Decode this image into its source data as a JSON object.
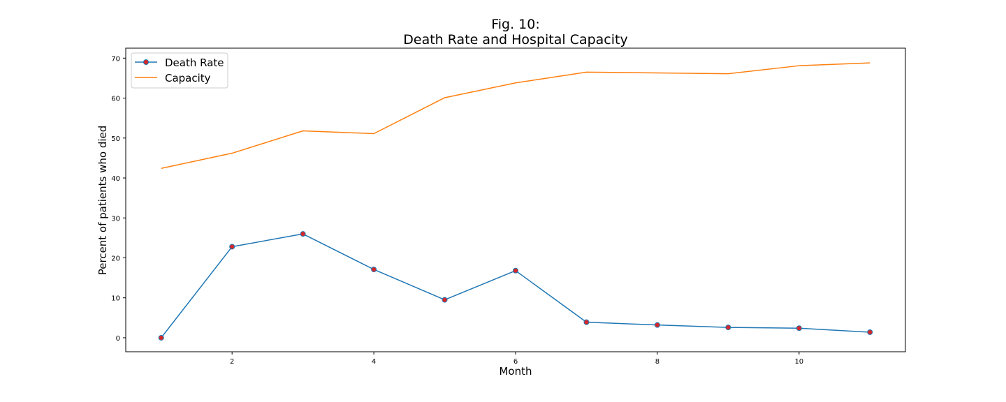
{
  "chart_data": {
    "type": "line",
    "title_line1": "Fig. 10:",
    "title_line2": "Death Rate and Hospital Capacity",
    "xlabel": "Month",
    "ylabel": "Percent of patients who died",
    "x": [
      1,
      2,
      3,
      4,
      5,
      6,
      7,
      8,
      9,
      10,
      11
    ],
    "xlim": [
      0.5,
      11.5
    ],
    "ylim": [
      -3.5,
      72.5
    ],
    "xticks": [
      2,
      4,
      6,
      8,
      10
    ],
    "yticks": [
      0,
      10,
      20,
      30,
      40,
      50,
      60,
      70
    ],
    "legend_position": "top-left",
    "grid": false,
    "series": [
      {
        "name": "Death Rate",
        "color": "#1f77b4",
        "marker": "circle",
        "marker_color": "#d62728",
        "values": [
          0.0,
          22.8,
          26.0,
          17.1,
          9.5,
          16.8,
          3.9,
          3.2,
          2.6,
          2.4,
          1.4
        ]
      },
      {
        "name": "Capacity",
        "color": "#ff7f0e",
        "marker": "none",
        "values": [
          42.4,
          46.2,
          51.8,
          51.1,
          60.1,
          63.8,
          66.5,
          66.3,
          66.1,
          68.1,
          68.8
        ]
      }
    ]
  }
}
